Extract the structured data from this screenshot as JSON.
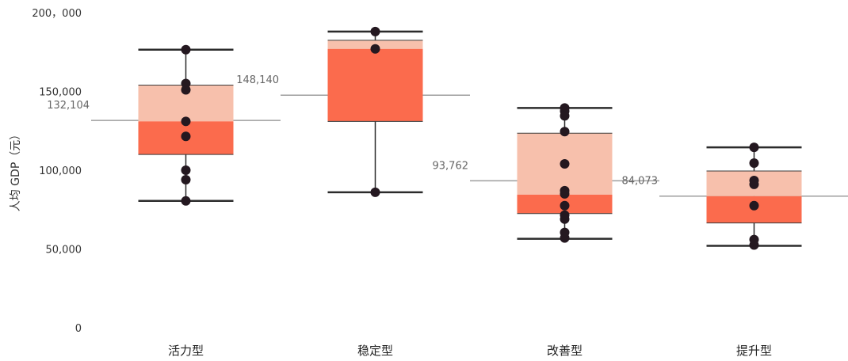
{
  "chart_data": {
    "type": "box",
    "ylabel": "人均 GDP（元）",
    "ylim": [
      0,
      200000
    ],
    "y_ticks": [
      {
        "value": 0,
        "label": "0"
      },
      {
        "value": 50000,
        "label": "50,000"
      },
      {
        "value": 100000,
        "label": "100,000"
      },
      {
        "value": 150000,
        "label": "150,000"
      },
      {
        "value": 200000,
        "label": "200，000"
      }
    ],
    "categories": [
      "活力型",
      "稳定型",
      "改善型",
      "提升型"
    ],
    "boxes": [
      {
        "category": "活力型",
        "whisker_low": 81000,
        "q1": 110500,
        "median": 131500,
        "q3": 154500,
        "whisker_high": 177000,
        "mean": 132104,
        "mean_label": "132,104",
        "points": [
          177000,
          155500,
          151500,
          131500,
          122000,
          100500,
          94500,
          81000
        ]
      },
      {
        "category": "稳定型",
        "whisker_low": 86500,
        "q1": 131500,
        "median": 177500,
        "q3": 183000,
        "whisker_high": 188500,
        "mean": 148140,
        "mean_label": "148,140",
        "points": [
          188500,
          177500,
          86500
        ]
      },
      {
        "category": "改善型",
        "whisker_low": 57000,
        "q1": 73000,
        "median": 85000,
        "q3": 124000,
        "whisker_high": 140000,
        "mean": 93762,
        "mean_label": "93,762",
        "points": [
          140000,
          138000,
          135000,
          125000,
          104500,
          87500,
          85500,
          78000,
          72000,
          69500,
          61000,
          57500
        ]
      },
      {
        "category": "提升型",
        "whisker_low": 52500,
        "q1": 67000,
        "median": 84000,
        "q3": 100000,
        "whisker_high": 115000,
        "mean": 84073,
        "mean_label": "84,073",
        "points": [
          115000,
          105000,
          94000,
          91500,
          78000,
          56500,
          53000
        ]
      }
    ]
  },
  "colors": {
    "box_upper": "#f7c0ac",
    "box_lower": "#fb6b4d",
    "whisker": "#2b2b2b",
    "point": "#241820",
    "mean_line": "#9e9e9e"
  }
}
